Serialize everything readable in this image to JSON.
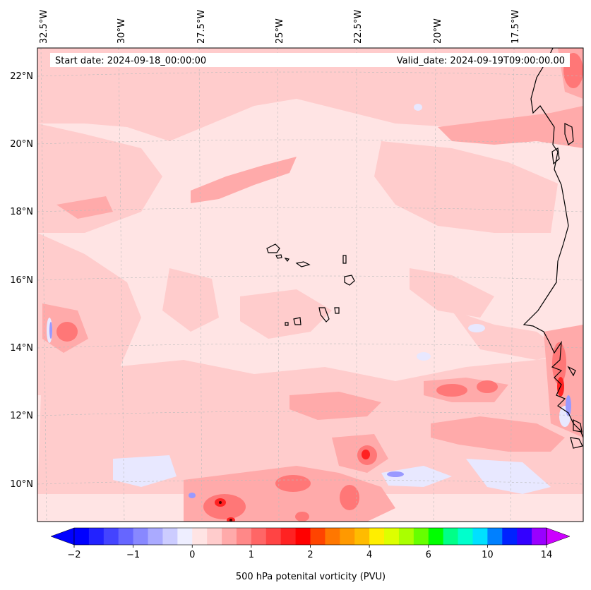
{
  "header": {
    "start_label": "Start date: 2024-09-18_00:00:00",
    "valid_label": "Valid_date: 2024-09-19T09:00:00.00"
  },
  "map": {
    "longitude_labels": [
      "32.5°W",
      "30°W",
      "27.5°W",
      "25°W",
      "22.5°W",
      "20°W",
      "17.5°W"
    ],
    "latitude_labels": [
      "22°N",
      "20°N",
      "18°N",
      "16°N",
      "14°N",
      "12°N",
      "10°N"
    ]
  },
  "colorbar": {
    "label": "500 hPa potenital vorticity (PVU)",
    "tick_labels": [
      "−2",
      "−1",
      "0",
      "1",
      "2",
      "4",
      "6",
      "10",
      "14"
    ],
    "colors": [
      "#0000ff",
      "#2222ff",
      "#4444ff",
      "#6666ff",
      "#8888ff",
      "#aaaaff",
      "#ccccff",
      "#eeeeff",
      "#ffe4e4",
      "#ffcccc",
      "#ffaaaa",
      "#ff8888",
      "#ff6666",
      "#ff4444",
      "#ff2222",
      "#ff0000",
      "#ff4400",
      "#ff7700",
      "#ff9900",
      "#ffbb00",
      "#ffee00",
      "#ddff00",
      "#aaff00",
      "#66ff00",
      "#00ff00",
      "#00ff88",
      "#00ffcc",
      "#00e0ff",
      "#0080ff",
      "#0022ff",
      "#3300ff",
      "#9900ff"
    ],
    "under_color": "#0000ff",
    "over_color": "#cc00ff"
  },
  "colors": {
    "background_field": "#ffe4e4",
    "light": "#ffcccc",
    "medium": "#ffaaaa",
    "strong": "#ff7777",
    "peak": "#ff2222",
    "negative": "#e8e8ff",
    "negative_strong": "#8888ff",
    "coast": "#000000"
  }
}
